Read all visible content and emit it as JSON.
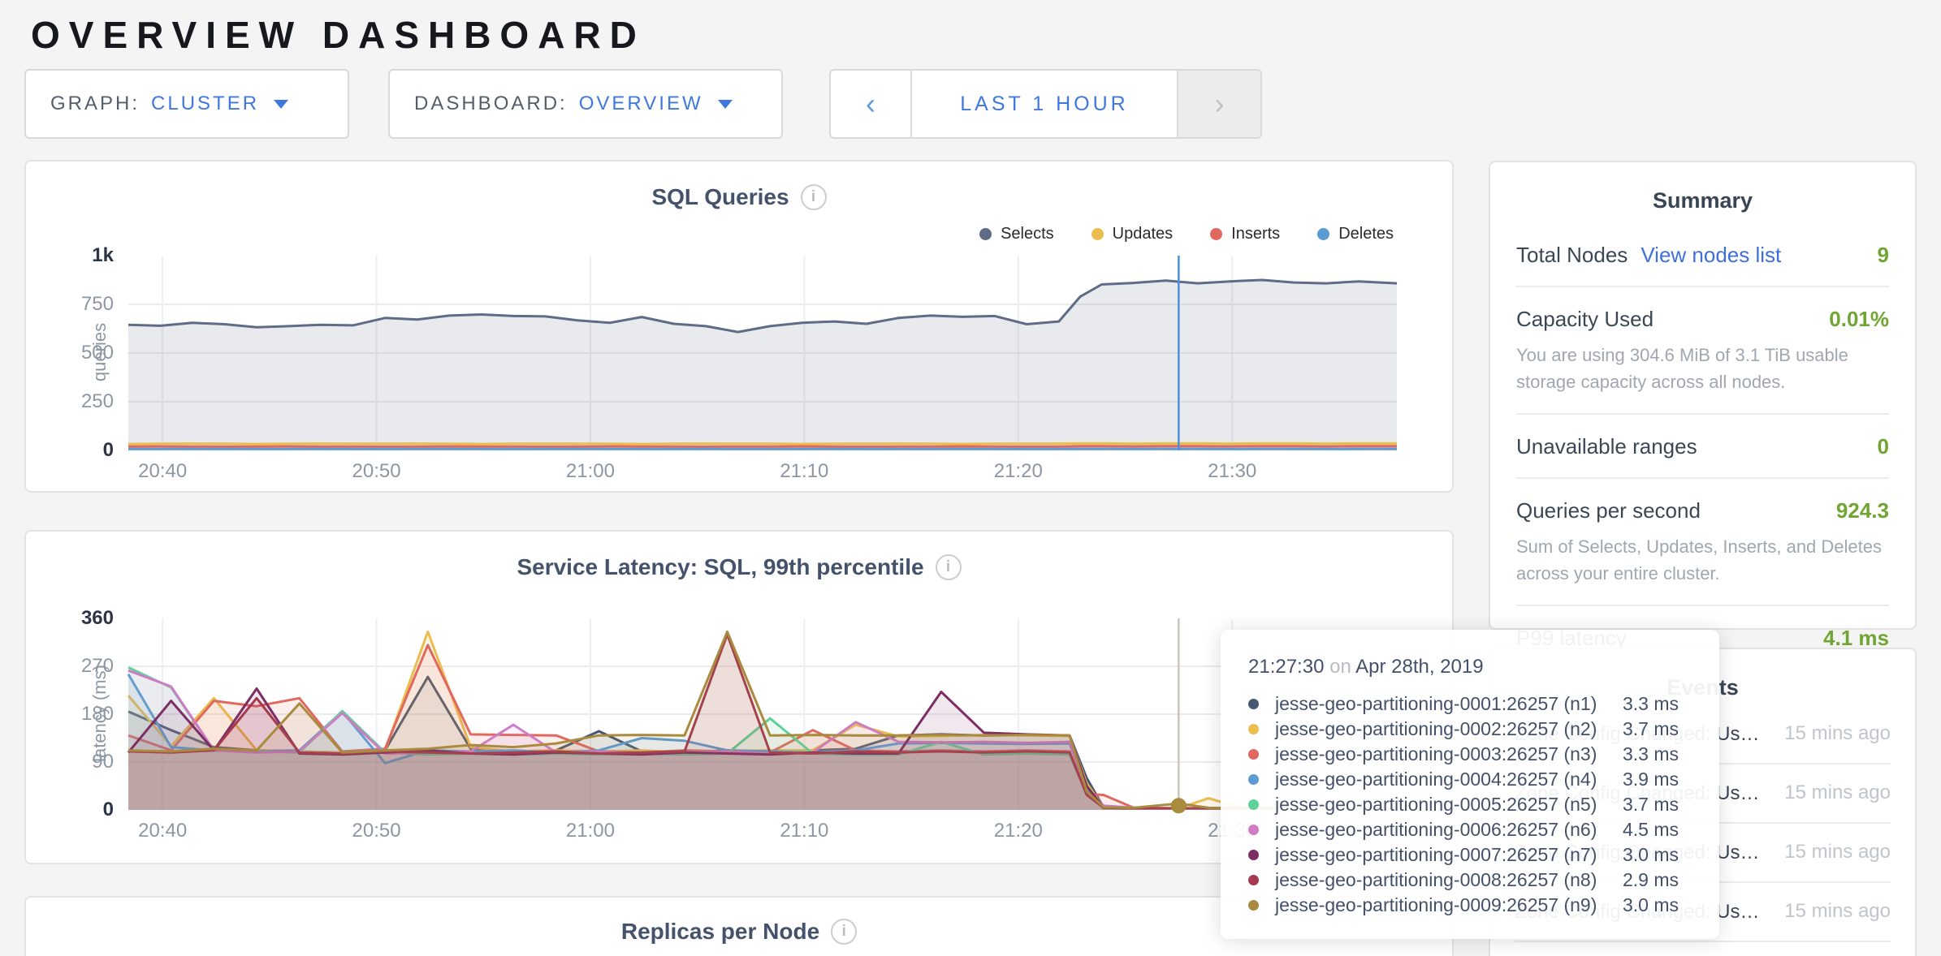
{
  "page": {
    "title": "OVERVIEW DASHBOARD"
  },
  "colors": {
    "accent_blue": "#3f78dd",
    "link_blue": "#3f6fdb",
    "good_green": "#70a533",
    "dark_text": "#394455",
    "muted_text": "#9fa7b0"
  },
  "controls": {
    "graph": {
      "label": "GRAPH:",
      "value": "CLUSTER"
    },
    "dashboard": {
      "label": "DASHBOARD:",
      "value": "OVERVIEW"
    },
    "time": {
      "prev": "‹",
      "range": "LAST 1 HOUR",
      "next": "›"
    }
  },
  "summary": {
    "title": "Summary",
    "rows": [
      {
        "label": "Total Nodes",
        "link": "View nodes list",
        "value": "9",
        "subtext": ""
      },
      {
        "label": "Capacity Used",
        "link": "",
        "value": "0.01%",
        "subtext": "You are using 304.6 MiB of 3.1 TiB usable storage capacity across all nodes."
      },
      {
        "label": "Unavailable ranges",
        "link": "",
        "value": "0",
        "subtext": ""
      },
      {
        "label": "Queries per second",
        "link": "",
        "value": "924.3",
        "subtext": "Sum of Selects, Updates, Inserts, and Deletes across your entire cluster."
      },
      {
        "label": "P99 latency",
        "link": "",
        "value": "4.1 ms",
        "subtext": ""
      }
    ]
  },
  "events": {
    "title": "Events",
    "rows": [
      {
        "desc": "Zone Config Changed: User…",
        "time": "15 mins ago"
      },
      {
        "desc": "Zone Config Changed: User…",
        "time": "15 mins ago"
      },
      {
        "desc": "Zone Config Changed: User…",
        "time": "15 mins ago"
      },
      {
        "desc": "Zone Config Changed: User…",
        "time": "15 mins ago"
      }
    ]
  },
  "tooltip": {
    "time": "21:27:30",
    "on": "on",
    "date": "Apr 28th, 2019",
    "rows": [
      {
        "name": "jesse-geo-partitioning-0001:26257 (n1)",
        "value": "3.3 ms",
        "color": "#475872"
      },
      {
        "name": "jesse-geo-partitioning-0002:26257 (n2)",
        "value": "3.7 ms",
        "color": "#eabd4e"
      },
      {
        "name": "jesse-geo-partitioning-0003:26257 (n3)",
        "value": "3.3 ms",
        "color": "#e0685f"
      },
      {
        "name": "jesse-geo-partitioning-0004:26257 (n4)",
        "value": "3.9 ms",
        "color": "#5b9bd3"
      },
      {
        "name": "jesse-geo-partitioning-0005:26257 (n5)",
        "value": "3.7 ms",
        "color": "#5fd19a"
      },
      {
        "name": "jesse-geo-partitioning-0006:26257 (n6)",
        "value": "4.5 ms",
        "color": "#cf7cc5"
      },
      {
        "name": "jesse-geo-partitioning-0007:26257 (n7)",
        "value": "3.0 ms",
        "color": "#7d2e63"
      },
      {
        "name": "jesse-geo-partitioning-0008:26257 (n8)",
        "value": "2.9 ms",
        "color": "#a63950"
      },
      {
        "name": "jesse-geo-partitioning-0009:26257 (n9)",
        "value": "3.0 ms",
        "color": "#a98b3f"
      }
    ]
  },
  "chart_data": [
    {
      "type": "area",
      "title": "SQL Queries",
      "ylabel": "queries",
      "ylim": [
        0,
        1000
      ],
      "y_ticks": [
        0,
        250,
        500,
        750,
        1000
      ],
      "y_tick_labels": [
        "0",
        "250",
        "500",
        "750",
        "1k"
      ],
      "x_tick_labels": [
        "20:40",
        "20:50",
        "21:00",
        "21:10",
        "21:20",
        "21:30"
      ],
      "x_window": "20:38 - 21:38",
      "grid": true,
      "legend_position": "top-right",
      "hover_time": "21:27:30",
      "x": [
        0,
        1.5,
        3,
        4.5,
        6,
        7.5,
        9,
        10.5,
        12,
        13.5,
        15,
        16.5,
        18,
        19.5,
        21,
        22.5,
        24,
        25.5,
        27,
        28.5,
        30,
        31.5,
        33,
        34.5,
        36,
        37.5,
        39,
        40.5,
        42,
        43.5,
        44.5,
        45.5,
        47,
        48.5,
        50,
        51.5,
        53,
        54.5,
        56,
        57.5,
        59.3
      ],
      "series": [
        {
          "name": "Selects",
          "color": "#5f6c87",
          "values": [
            645,
            640,
            655,
            648,
            632,
            638,
            645,
            642,
            680,
            672,
            692,
            698,
            690,
            688,
            668,
            655,
            685,
            650,
            638,
            608,
            638,
            655,
            662,
            650,
            680,
            692,
            686,
            690,
            648,
            662,
            790,
            852,
            860,
            872,
            858,
            868,
            875,
            862,
            858,
            868,
            858
          ]
        },
        {
          "name": "Updates",
          "color": "#eabd4e",
          "values": [
            33,
            34,
            35,
            34,
            33,
            34,
            35,
            34,
            34,
            35,
            34,
            33,
            34,
            35,
            34,
            34,
            33,
            34,
            35,
            34,
            34,
            33,
            34,
            34,
            35,
            34,
            33,
            34,
            34,
            35,
            36,
            36,
            35,
            36,
            36,
            35,
            36,
            36,
            35,
            36,
            36
          ]
        },
        {
          "name": "Inserts",
          "color": "#e0685f",
          "values": [
            20,
            21,
            20,
            19,
            20,
            21,
            20,
            20,
            19,
            20,
            21,
            20,
            20,
            19,
            20,
            21,
            20,
            20,
            19,
            20,
            20,
            21,
            20,
            19,
            20,
            20,
            21,
            20,
            19,
            20,
            22,
            22,
            21,
            22,
            22,
            21,
            22,
            22,
            21,
            22,
            22
          ]
        },
        {
          "name": "Deletes",
          "color": "#5b9bd3",
          "values": [
            7,
            7,
            8,
            7,
            7,
            7,
            8,
            7,
            7,
            7,
            8,
            7,
            7,
            7,
            8,
            7,
            7,
            7,
            8,
            7,
            7,
            7,
            8,
            7,
            7,
            7,
            8,
            7,
            7,
            7,
            8,
            8,
            7,
            8,
            8,
            7,
            8,
            8,
            7,
            8,
            8
          ]
        }
      ]
    },
    {
      "type": "area",
      "title": "Service Latency: SQL, 99th percentile",
      "ylabel": "latency (ms)",
      "ylim": [
        0,
        360
      ],
      "y_ticks": [
        0,
        90,
        180,
        270,
        360
      ],
      "y_tick_labels": [
        "0",
        "90",
        "180",
        "270",
        "360"
      ],
      "x_tick_labels": [
        "20:40",
        "20:50",
        "21:00",
        "21:10",
        "21:20",
        "21:30"
      ],
      "x_window": "20:38 - 21:38",
      "grid": true,
      "legend_position": "none",
      "hover_time": "21:27:30",
      "hover_dot": {
        "series": 8,
        "value": 8
      },
      "x": [
        0,
        2,
        4,
        6,
        8,
        10,
        12,
        14,
        16,
        18,
        20,
        22,
        24,
        26,
        28,
        30,
        32,
        34,
        36,
        38,
        40,
        42,
        44,
        44.8,
        45.6,
        47,
        49.1,
        50.5,
        52,
        54,
        56,
        58,
        59.3
      ],
      "series": [
        {
          "name": "jesse-geo-partitioning-0001:26257 (n1)",
          "color": "#475872",
          "values": [
            185,
            150,
            118,
            112,
            110,
            108,
            112,
            250,
            115,
            110,
            112,
            148,
            110,
            108,
            112,
            110,
            112,
            115,
            140,
            142,
            140,
            141,
            140,
            60,
            4,
            3,
            3,
            3,
            3,
            4,
            3,
            3,
            3
          ]
        },
        {
          "name": "jesse-geo-partitioning-0002:26257 (n2)",
          "color": "#eabd4e",
          "values": [
            215,
            120,
            210,
            112,
            110,
            108,
            112,
            335,
            118,
            110,
            112,
            110,
            112,
            108,
            110,
            112,
            112,
            160,
            138,
            139,
            141,
            140,
            139,
            50,
            4,
            3,
            3,
            22,
            4,
            3,
            3,
            4,
            3
          ]
        },
        {
          "name": "jesse-geo-partitioning-0003:26257 (n3)",
          "color": "#e0685f",
          "values": [
            140,
            112,
            205,
            195,
            210,
            110,
            115,
            310,
            142,
            141,
            140,
            110,
            108,
            112,
            110,
            108,
            150,
            112,
            110,
            112,
            110,
            112,
            110,
            30,
            28,
            4,
            3,
            3,
            3,
            4,
            3,
            3,
            3
          ]
        },
        {
          "name": "jesse-geo-partitioning-0004:26257 (n4)",
          "color": "#5b9bd3",
          "values": [
            255,
            118,
            112,
            110,
            112,
            185,
            88,
            112,
            110,
            112,
            108,
            112,
            135,
            130,
            112,
            110,
            108,
            112,
            125,
            126,
            125,
            124,
            125,
            40,
            4,
            3,
            3,
            3,
            4,
            3,
            3,
            3,
            3
          ]
        },
        {
          "name": "jesse-geo-partitioning-0005:26257 (n5)",
          "color": "#5fd19a",
          "values": [
            268,
            230,
            112,
            110,
            108,
            186,
            108,
            104,
            106,
            104,
            106,
            104,
            106,
            104,
            106,
            172,
            106,
            104,
            104,
            128,
            104,
            106,
            104,
            30,
            3,
            3,
            3,
            3,
            3,
            3,
            4,
            3,
            3
          ]
        },
        {
          "name": "jesse-geo-partitioning-0006:26257 (n6)",
          "color": "#cf7cc5",
          "values": [
            262,
            232,
            112,
            108,
            110,
            182,
            106,
            108,
            110,
            160,
            108,
            110,
            106,
            108,
            110,
            106,
            108,
            165,
            128,
            127,
            128,
            126,
            128,
            35,
            8,
            4,
            3,
            3,
            3,
            4,
            3,
            3,
            3
          ]
        },
        {
          "name": "jesse-geo-partitioning-0007:26257 (n7)",
          "color": "#7d2e63",
          "values": [
            108,
            205,
            112,
            228,
            106,
            104,
            108,
            112,
            106,
            104,
            108,
            106,
            104,
            108,
            106,
            104,
            108,
            106,
            106,
            222,
            145,
            142,
            140,
            45,
            4,
            3,
            3,
            3,
            3,
            3,
            3,
            4,
            3
          ]
        },
        {
          "name": "jesse-geo-partitioning-0008:26257 (n8)",
          "color": "#a63950",
          "values": [
            110,
            108,
            112,
            210,
            108,
            106,
            110,
            108,
            106,
            108,
            110,
            106,
            108,
            110,
            330,
            108,
            106,
            110,
            108,
            110,
            108,
            110,
            108,
            28,
            4,
            3,
            3,
            3,
            4,
            3,
            3,
            3,
            3
          ]
        },
        {
          "name": "jesse-geo-partitioning-0009:26257 (n9)",
          "color": "#a98b3f",
          "values": [
            112,
            110,
            115,
            112,
            200,
            108,
            112,
            115,
            122,
            118,
            125,
            140,
            141,
            140,
            335,
            140,
            141,
            140,
            140,
            141,
            140,
            141,
            140,
            35,
            5,
            4,
            12,
            4,
            3,
            3,
            4,
            3,
            3
          ]
        }
      ]
    },
    {
      "type": "line",
      "title": "Replicas per Node",
      "note": "chart body cut off at bottom of screenshot"
    }
  ]
}
